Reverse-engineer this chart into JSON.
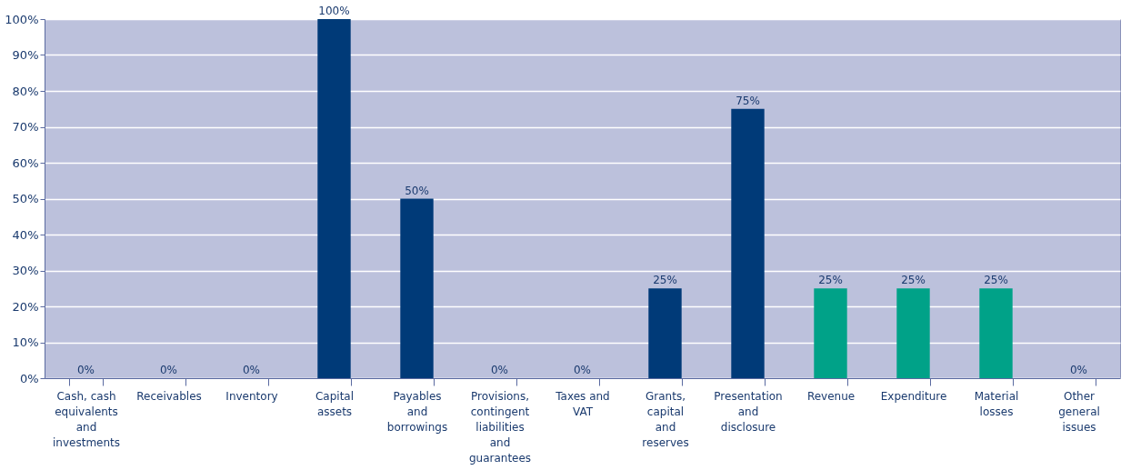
{
  "chart_data": {
    "type": "bar",
    "categories": [
      "Cash, cash equivalents and investments",
      "Receivables",
      "Inventory",
      "Capital assets",
      "Payables and borrowings",
      "Provisions, contingent liabilities and guarantees",
      "Taxes and VAT",
      "Grants, capital and reserves",
      "Presentation and disclosure",
      "Revenue",
      "Expenditure",
      "Material losses",
      "Other general issues"
    ],
    "values": [
      0,
      0,
      0,
      100,
      50,
      0,
      0,
      25,
      75,
      25,
      25,
      25,
      0
    ],
    "colors": [
      "#003a78",
      "#003a78",
      "#003a78",
      "#003a78",
      "#003a78",
      "#003a78",
      "#003a78",
      "#003a78",
      "#003a78",
      "#00a288",
      "#00a288",
      "#00a288",
      "#003a78"
    ],
    "value_labels": [
      "0%",
      "0%",
      "0%",
      "100%",
      "50%",
      "0%",
      "0%",
      "25%",
      "75%",
      "25%",
      "25%",
      "25%",
      "0%"
    ],
    "ylim": [
      0,
      100
    ],
    "yticks": [
      {
        "value": 0,
        "label": "0%"
      },
      {
        "value": 10,
        "label": "10%"
      },
      {
        "value": 20,
        "label": "20%"
      },
      {
        "value": 30,
        "label": "30%"
      },
      {
        "value": 40,
        "label": "40%"
      },
      {
        "value": 50,
        "label": "50%"
      },
      {
        "value": 60,
        "label": "60%"
      },
      {
        "value": 70,
        "label": "70%"
      },
      {
        "value": 80,
        "label": "80%"
      },
      {
        "value": 90,
        "label": "90%"
      },
      {
        "value": 100,
        "label": "100%"
      }
    ],
    "grid": "y"
  }
}
